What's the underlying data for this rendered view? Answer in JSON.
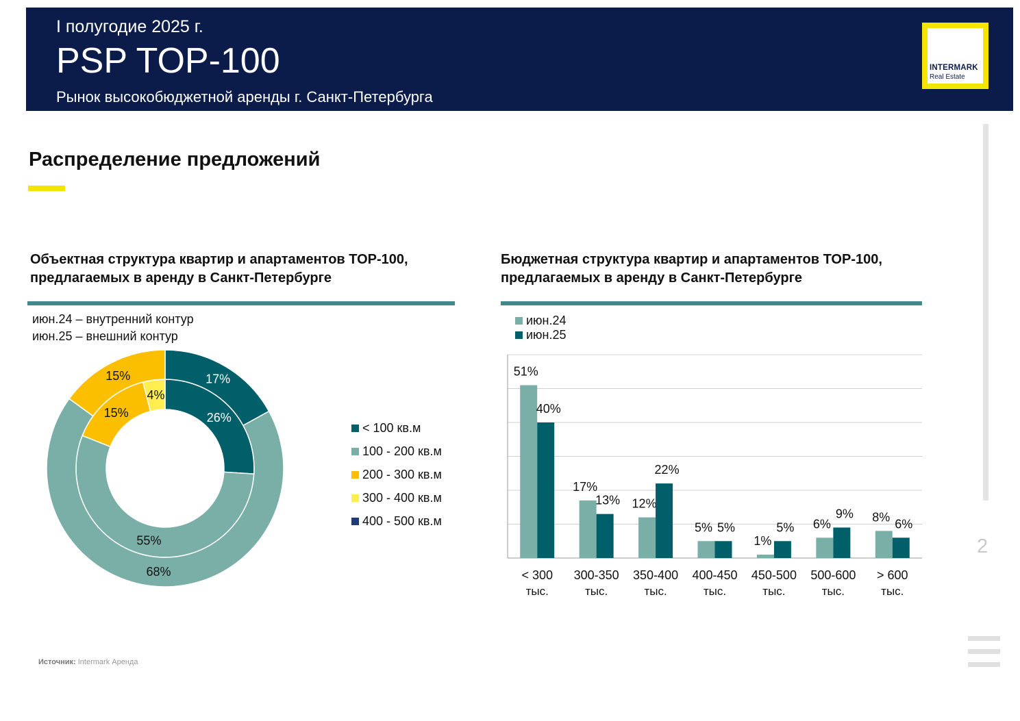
{
  "header": {
    "period": "I полугодие 2025 г.",
    "title": "PSP TOP-100",
    "subtitle": "Рынок высокобюджетной аренды г. Санкт-Петербурга",
    "logo_line1": "INTERMARK",
    "logo_line2": "Real Estate",
    "bg_color": "#0c1c4a",
    "logo_border_color": "#f3e500"
  },
  "section": {
    "title": "Распределение предложений"
  },
  "page_number": "2",
  "source": {
    "label": "Источник:",
    "value": "Intermark Аренда"
  },
  "donut_notes": [
    "июн.24 – внутренний контур",
    "июн.25 – внешний контур"
  ],
  "chart_data": [
    {
      "type": "pie",
      "title": "Объектная структура квартир и апартаментов TOP-100, предлагаемых в аренду в Санкт-Петербурге",
      "categories": [
        "< 100 кв.м",
        "100 - 200 кв.м",
        "200 - 300 кв.м",
        "300 - 400 кв.м",
        "400 - 500 кв.м"
      ],
      "colors": [
        "#005f69",
        "#7aafa7",
        "#fbbf00",
        "#ffee50",
        "#1f3c78"
      ],
      "series": [
        {
          "name": "июн.24",
          "ring": "inner",
          "values": [
            26,
            55,
            15,
            4,
            0
          ],
          "labels": [
            "26%",
            "55%",
            "15%",
            "4%",
            ""
          ]
        },
        {
          "name": "июн.25",
          "ring": "outer",
          "values": [
            17,
            68,
            15,
            0,
            0
          ],
          "labels": [
            "17%",
            "68%",
            "15%",
            "",
            ""
          ]
        }
      ],
      "legend": "right"
    },
    {
      "type": "bar",
      "title": "Бюджетная структура квартир и апартаментов TOP-100, предлагаемых в аренду в Санкт-Петербурге",
      "categories": [
        [
          "< 300",
          "тыс."
        ],
        [
          "300-350",
          "тыс."
        ],
        [
          "350-400",
          "тыс."
        ],
        [
          "400-450",
          "тыс."
        ],
        [
          "450-500",
          "тыс."
        ],
        [
          "500-600",
          "тыс."
        ],
        [
          "> 600",
          "тыс."
        ]
      ],
      "series": [
        {
          "name": "июн.24",
          "color": "#7aafa7",
          "values": [
            51,
            17,
            12,
            5,
            1,
            6,
            8
          ]
        },
        {
          "name": "июн.25",
          "color": "#005f69",
          "values": [
            40,
            13,
            22,
            5,
            5,
            9,
            6
          ]
        }
      ],
      "ylim": [
        0,
        60
      ],
      "grid": true,
      "legend": "top-left"
    }
  ]
}
